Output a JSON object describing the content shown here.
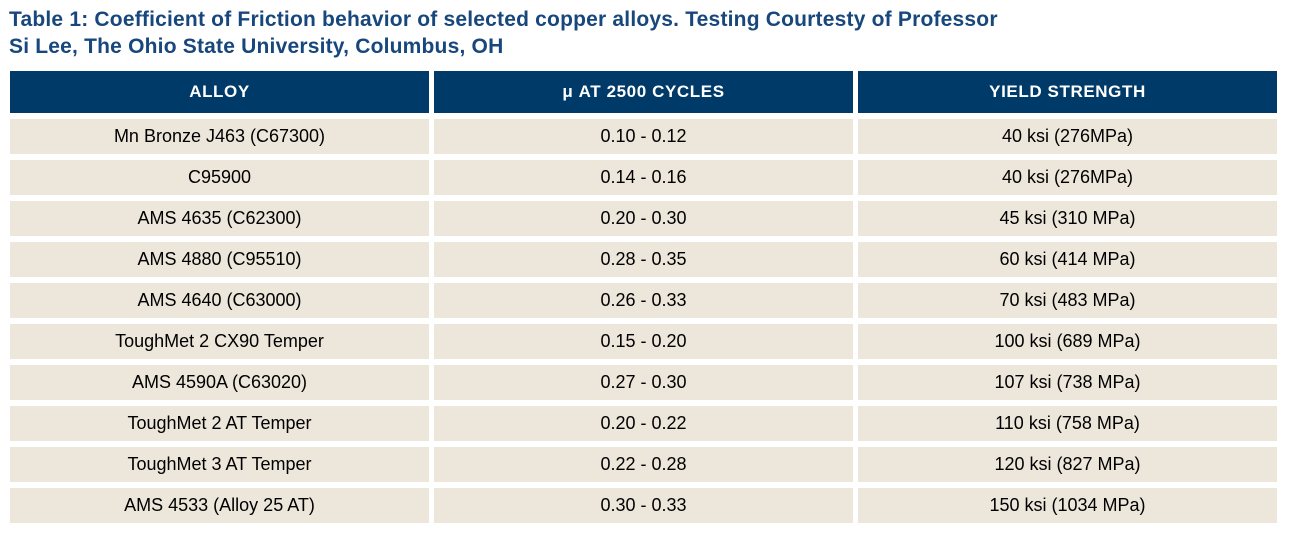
{
  "page": {
    "title_line1": "Table 1: Coefficient of Friction behavior of selected copper alloys. Testing Courtesty of Professor",
    "title_line2": "Si Lee, The Ohio State University, Columbus, OH"
  },
  "colors": {
    "title_text": "#17477c",
    "header_bg": "#003a68",
    "header_text": "#ffffff",
    "row_bg": "#ede6db",
    "body_text": "#000000",
    "page_bg": "#ffffff"
  },
  "table": {
    "headers": [
      "ALLOY",
      "μ AT 2500 CYCLES",
      "YIELD STRENGTH"
    ],
    "rows": [
      {
        "alloy": "Mn Bronze J463 (C67300)",
        "mu": "0.10 - 0.12",
        "yield_strength": "40 ksi (276MPa)"
      },
      {
        "alloy": "C95900",
        "mu": "0.14 - 0.16",
        "yield_strength": "40 ksi (276MPa)"
      },
      {
        "alloy": "AMS 4635 (C62300)",
        "mu": "0.20 - 0.30",
        "yield_strength": "45 ksi (310 MPa)"
      },
      {
        "alloy": "AMS 4880 (C95510)",
        "mu": "0.28 - 0.35",
        "yield_strength": "60 ksi (414 MPa)"
      },
      {
        "alloy": "AMS 4640 (C63000)",
        "mu": "0.26 - 0.33",
        "yield_strength": "70 ksi (483 MPa)"
      },
      {
        "alloy": "ToughMet 2 CX90 Temper",
        "mu": "0.15 - 0.20",
        "yield_strength": "100 ksi (689 MPa)"
      },
      {
        "alloy": "AMS 4590A (C63020)",
        "mu": "0.27 - 0.30",
        "yield_strength": "107 ksi (738 MPa)"
      },
      {
        "alloy": "ToughMet 2 AT Temper",
        "mu": "0.20 - 0.22",
        "yield_strength": "110 ksi (758 MPa)"
      },
      {
        "alloy": "ToughMet 3 AT Temper",
        "mu": "0.22 - 0.28",
        "yield_strength": "120 ksi (827 MPa)"
      },
      {
        "alloy": "AMS 4533 (Alloy 25 AT)",
        "mu": "0.30 - 0.33",
        "yield_strength": "150 ksi (1034 MPa)"
      }
    ]
  }
}
